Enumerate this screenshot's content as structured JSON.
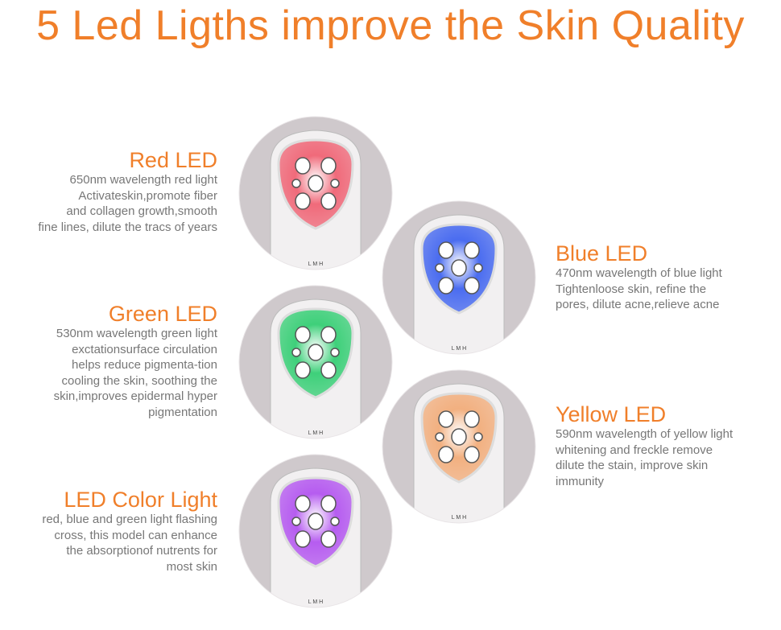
{
  "title": "5 Led Ligths improve the Skin Quality",
  "items": [
    {
      "name": "Red LED",
      "desc": "650nm wavelength red light\nActivateskin,promote fiber\nand collagen growth,smooth\nfine lines, dilute the tracs of years",
      "color": "#f06a7a"
    },
    {
      "name": "Blue LED",
      "desc": "470nm wavelength of blue light\nTightenloose skin, refine the\npores, dilute acne,relieve acne",
      "color": "#4a6cf0"
    },
    {
      "name": "Green LED",
      "desc": "530nm wavelength green light\nexctationsurface circulation\nhelps reduce pigmenta-tion\ncooling the skin, soothing the\nskin,improves epidermal hyper\npigmentation",
      "color": "#3ed07a"
    },
    {
      "name": "Yellow LED",
      "desc": "590nm wavelength of yellow light\nwhitening and freckle remove\ndilute the stain, improve skin\nimmunity",
      "color": "#f2b080"
    },
    {
      "name": "LED Color Light",
      "desc": "red, blue and green light flashing\ncross, this model can enhance\nthe absorptionof nutrents for\nmost skin",
      "color": "#b65cf0"
    }
  ],
  "device_labels": "L  M  H"
}
